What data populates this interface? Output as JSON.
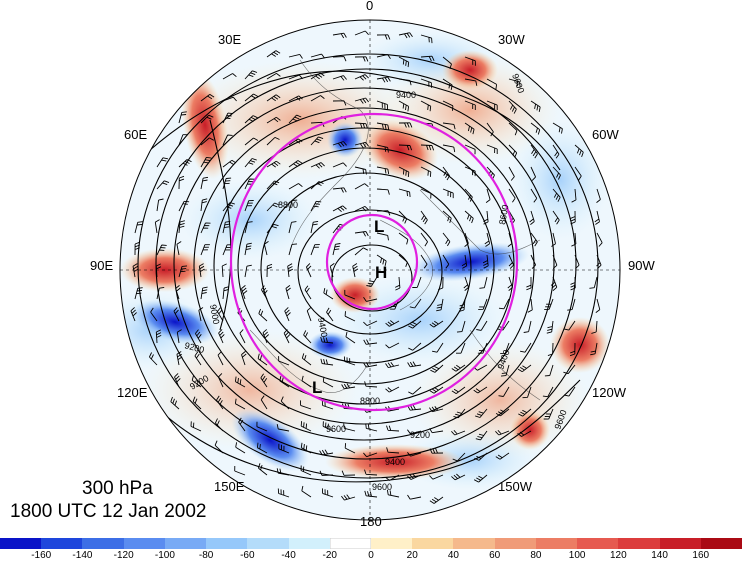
{
  "title": {
    "level": "300 hPa",
    "time": "1800 UTC 12 Jan 2002"
  },
  "longitude_labels": {
    "n0": "0",
    "e30": "30E",
    "w30": "30W",
    "e60": "60E",
    "w60": "60W",
    "e90": "90E",
    "w90": "90W",
    "e120": "120E",
    "w120": "120W",
    "e150": "150E",
    "w150": "150W",
    "s180": "180"
  },
  "pressure_centers": {
    "high": "H",
    "low_north": "L",
    "low_south": "L"
  },
  "contour_labels": {
    "c1": "9400",
    "c2": "9600",
    "c3": "8800",
    "c4": "8600",
    "c5": "9000",
    "c6": "9400",
    "c7": "9200",
    "c8": "8800",
    "c9": "9600",
    "c10": "9200",
    "c11": "9400",
    "c12": "9600",
    "c13": "9400",
    "c14": "9200",
    "c15": "9600"
  },
  "colorbar": {
    "ticks": [
      "-160",
      "-140",
      "-120",
      "-100",
      "-80",
      "-60",
      "-40",
      "-20",
      "0",
      "20",
      "40",
      "60",
      "80",
      "100",
      "120",
      "140",
      "160"
    ],
    "colors": [
      "#0a14c8",
      "#1e46dc",
      "#3c6ee6",
      "#5a8cf0",
      "#78aaf5",
      "#96c8fa",
      "#b4dcfa",
      "#d2f0fc",
      "#ffffff",
      "#fff0c8",
      "#fad7a0",
      "#f5b98c",
      "#f09b78",
      "#ec7d64",
      "#e65a50",
      "#dc3c3c",
      "#c81e28",
      "#aa0a14"
    ]
  },
  "colors": {
    "ring": "#e020e0",
    "contour": "#000000"
  }
}
